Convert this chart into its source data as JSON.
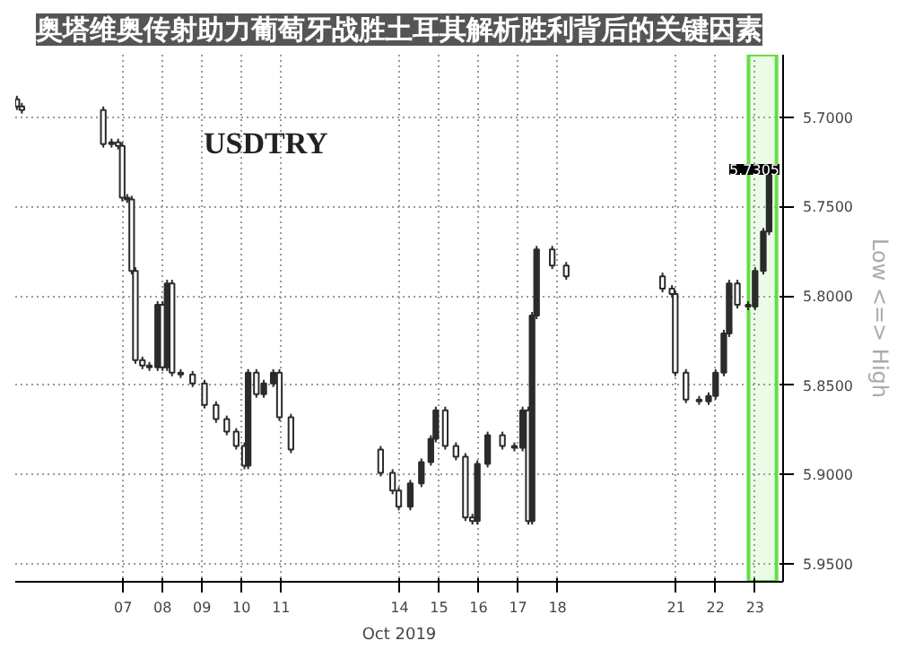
{
  "chart_data": {
    "type": "candlestick",
    "title": "奥塔维奥传射助力葡萄牙战胜土耳其解析胜利背后的关键因素",
    "xlabel": "Oct 2019",
    "ylabel": "Low <=> High",
    "color": "#2b2b2b",
    "annotations": [
      "USDTRY",
      "5.7305"
    ],
    "bands": [
      {
        "axis": "x",
        "from": "2019-10-23T08:00",
        "to": "2019-10-24T01:00",
        "label": null,
        "color": "#66dd44"
      }
    ],
    "grid": true,
    "xlim": [
      "2019-10-04T18:30",
      "2019-10-24T05:00"
    ],
    "ylim": [
      5.96,
      5.665
    ],
    "xticks": [
      {
        "value": "2019-10-07T12:00",
        "label": "07"
      },
      {
        "value": "2019-10-08T12:00",
        "label": "08"
      },
      {
        "value": "2019-10-09T12:00",
        "label": "09"
      },
      {
        "value": "2019-10-10T12:00",
        "label": "10"
      },
      {
        "value": "2019-10-11T12:00",
        "label": "11"
      },
      {
        "value": "2019-10-14T12:00",
        "label": "14"
      },
      {
        "value": "2019-10-15T12:00",
        "label": "15"
      },
      {
        "value": "2019-10-16T12:00",
        "label": "16"
      },
      {
        "value": "2019-10-17T12:00",
        "label": "17"
      },
      {
        "value": "2019-10-18T12:00",
        "label": "18"
      },
      {
        "value": "2019-10-21T12:00",
        "label": "21"
      },
      {
        "value": "2019-10-22T12:00",
        "label": "22"
      },
      {
        "value": "2019-10-23T12:00",
        "label": "23"
      }
    ],
    "yticks": [
      {
        "value": 5.7,
        "label": "5.7000"
      },
      {
        "value": 5.75,
        "label": "5.7500"
      },
      {
        "value": 5.8,
        "label": "5.8000"
      },
      {
        "value": 5.85,
        "label": "5.8500"
      },
      {
        "value": 5.9,
        "label": "5.9000"
      },
      {
        "value": 5.95,
        "label": "5.9500"
      }
    ],
    "x": [
      "2019-10-04T19:30",
      "2019-10-04T22:30",
      "2019-10-07T00:00",
      "2019-10-07T05:00",
      "2019-10-07T09:00",
      "2019-10-07T11:30",
      "2019-10-07T14:30",
      "2019-10-07T17:15",
      "2019-10-07T19:30",
      "2019-10-07T23:45",
      "2019-10-08T04:00",
      "2019-10-08T09:00",
      "2019-10-08T12:00",
      "2019-10-08T14:45",
      "2019-10-08T17:45",
      "2019-10-08T23:00",
      "2019-10-09T06:15",
      "2019-10-09T13:30",
      "2019-10-09T20:30",
      "2019-10-10T03:00",
      "2019-10-10T08:45",
      "2019-10-10T13:45",
      "2019-10-10T16:00",
      "2019-10-10T21:00",
      "2019-10-11T01:30",
      "2019-10-11T07:15",
      "2019-10-11T11:00",
      "2019-10-11T18:00",
      "2019-10-14T00:30",
      "2019-10-14T07:45",
      "2019-10-14T11:30",
      "2019-10-14T18:30",
      "2019-10-15T01:15",
      "2019-10-15T07:00",
      "2019-10-15T10:00",
      "2019-10-15T15:45",
      "2019-10-15T22:15",
      "2019-10-16T04:00",
      "2019-10-16T08:15",
      "2019-10-16T11:15",
      "2019-10-16T17:30",
      "2019-10-17T02:30",
      "2019-10-17T09:45",
      "2019-10-17T14:45",
      "2019-10-17T18:15",
      "2019-10-17T20:30",
      "2019-10-17T23:15",
      "2019-10-18T08:45",
      "2019-10-18T17:15",
      "2019-10-21T03:45",
      "2019-10-21T09:30",
      "2019-10-21T11:30",
      "2019-10-21T18:00",
      "2019-10-22T02:00",
      "2019-10-22T07:45",
      "2019-10-22T12:00",
      "2019-10-22T17:00",
      "2019-10-22T20:15",
      "2019-10-23T01:15",
      "2019-10-23T07:45",
      "2019-10-23T12:00",
      "2019-10-23T17:00",
      "2019-10-23T20:30"
    ],
    "ohlc": [
      [
        5.69,
        5.696,
        5.688,
        5.694
      ],
      [
        5.694,
        5.698,
        5.692,
        5.696
      ],
      [
        5.696,
        5.717,
        5.694,
        5.715
      ],
      [
        5.715,
        5.717,
        5.712,
        5.714
      ],
      [
        5.714,
        5.718,
        5.712,
        5.716
      ],
      [
        5.716,
        5.747,
        5.714,
        5.745
      ],
      [
        5.745,
        5.748,
        5.743,
        5.746
      ],
      [
        5.746,
        5.788,
        5.744,
        5.786
      ],
      [
        5.786,
        5.838,
        5.784,
        5.836
      ],
      [
        5.836,
        5.841,
        5.834,
        5.839
      ],
      [
        5.839,
        5.842,
        5.837,
        5.84
      ],
      [
        5.84,
        5.842,
        5.803,
        5.805
      ],
      [
        5.805,
        5.842,
        5.803,
        5.84
      ],
      [
        5.84,
        5.842,
        5.791,
        5.793
      ],
      [
        5.793,
        5.845,
        5.791,
        5.843
      ],
      [
        5.843,
        5.846,
        5.841,
        5.844
      ],
      [
        5.844,
        5.851,
        5.842,
        5.849
      ],
      [
        5.849,
        5.863,
        5.847,
        5.861
      ],
      [
        5.861,
        5.871,
        5.859,
        5.869
      ],
      [
        5.869,
        5.878,
        5.867,
        5.876
      ],
      [
        5.876,
        5.886,
        5.874,
        5.884
      ],
      [
        5.884,
        5.897,
        5.882,
        5.895
      ],
      [
        5.895,
        5.897,
        5.841,
        5.843
      ],
      [
        5.843,
        5.857,
        5.841,
        5.855
      ],
      [
        5.855,
        5.857,
        5.847,
        5.849
      ],
      [
        5.849,
        5.851,
        5.841,
        5.843
      ],
      [
        5.843,
        5.87,
        5.841,
        5.868
      ],
      [
        5.868,
        5.888,
        5.866,
        5.886
      ],
      [
        5.886,
        5.901,
        5.884,
        5.899
      ],
      [
        5.899,
        5.911,
        5.897,
        5.909
      ],
      [
        5.909,
        5.92,
        5.907,
        5.918
      ],
      [
        5.918,
        5.92,
        5.903,
        5.905
      ],
      [
        5.905,
        5.907,
        5.891,
        5.893
      ],
      [
        5.893,
        5.895,
        5.878,
        5.88
      ],
      [
        5.88,
        5.882,
        5.862,
        5.864
      ],
      [
        5.864,
        5.886,
        5.862,
        5.884
      ],
      [
        5.884,
        5.892,
        5.882,
        5.89
      ],
      [
        5.89,
        5.926,
        5.888,
        5.924
      ],
      [
        5.924,
        5.928,
        5.922,
        5.926
      ],
      [
        5.926,
        5.928,
        5.892,
        5.894
      ],
      [
        5.894,
        5.896,
        5.876,
        5.878
      ],
      [
        5.878,
        5.886,
        5.876,
        5.884
      ],
      [
        5.884,
        5.887,
        5.882,
        5.885
      ],
      [
        5.885,
        5.887,
        5.862,
        5.864
      ],
      [
        5.864,
        5.928,
        5.862,
        5.926
      ],
      [
        5.926,
        5.928,
        5.809,
        5.811
      ],
      [
        5.811,
        5.813,
        5.772,
        5.774
      ],
      [
        5.774,
        5.785,
        5.772,
        5.783
      ],
      [
        5.783,
        5.791,
        5.781,
        5.789
      ],
      [
        5.789,
        5.798,
        5.787,
        5.796
      ],
      [
        5.796,
        5.801,
        5.794,
        5.799
      ],
      [
        5.799,
        5.845,
        5.797,
        5.843
      ],
      [
        5.843,
        5.86,
        5.841,
        5.858
      ],
      [
        5.858,
        5.861,
        5.856,
        5.859
      ],
      [
        5.859,
        5.861,
        5.854,
        5.856
      ],
      [
        5.856,
        5.858,
        5.841,
        5.843
      ],
      [
        5.843,
        5.845,
        5.819,
        5.821
      ],
      [
        5.821,
        5.823,
        5.791,
        5.793
      ],
      [
        5.793,
        5.807,
        5.791,
        5.805
      ],
      [
        5.805,
        5.808,
        5.803,
        5.806
      ],
      [
        5.806,
        5.808,
        5.784,
        5.786
      ],
      [
        5.786,
        5.788,
        5.762,
        5.764
      ],
      [
        5.764,
        5.766,
        5.7285,
        5.7305
      ]
    ]
  }
}
